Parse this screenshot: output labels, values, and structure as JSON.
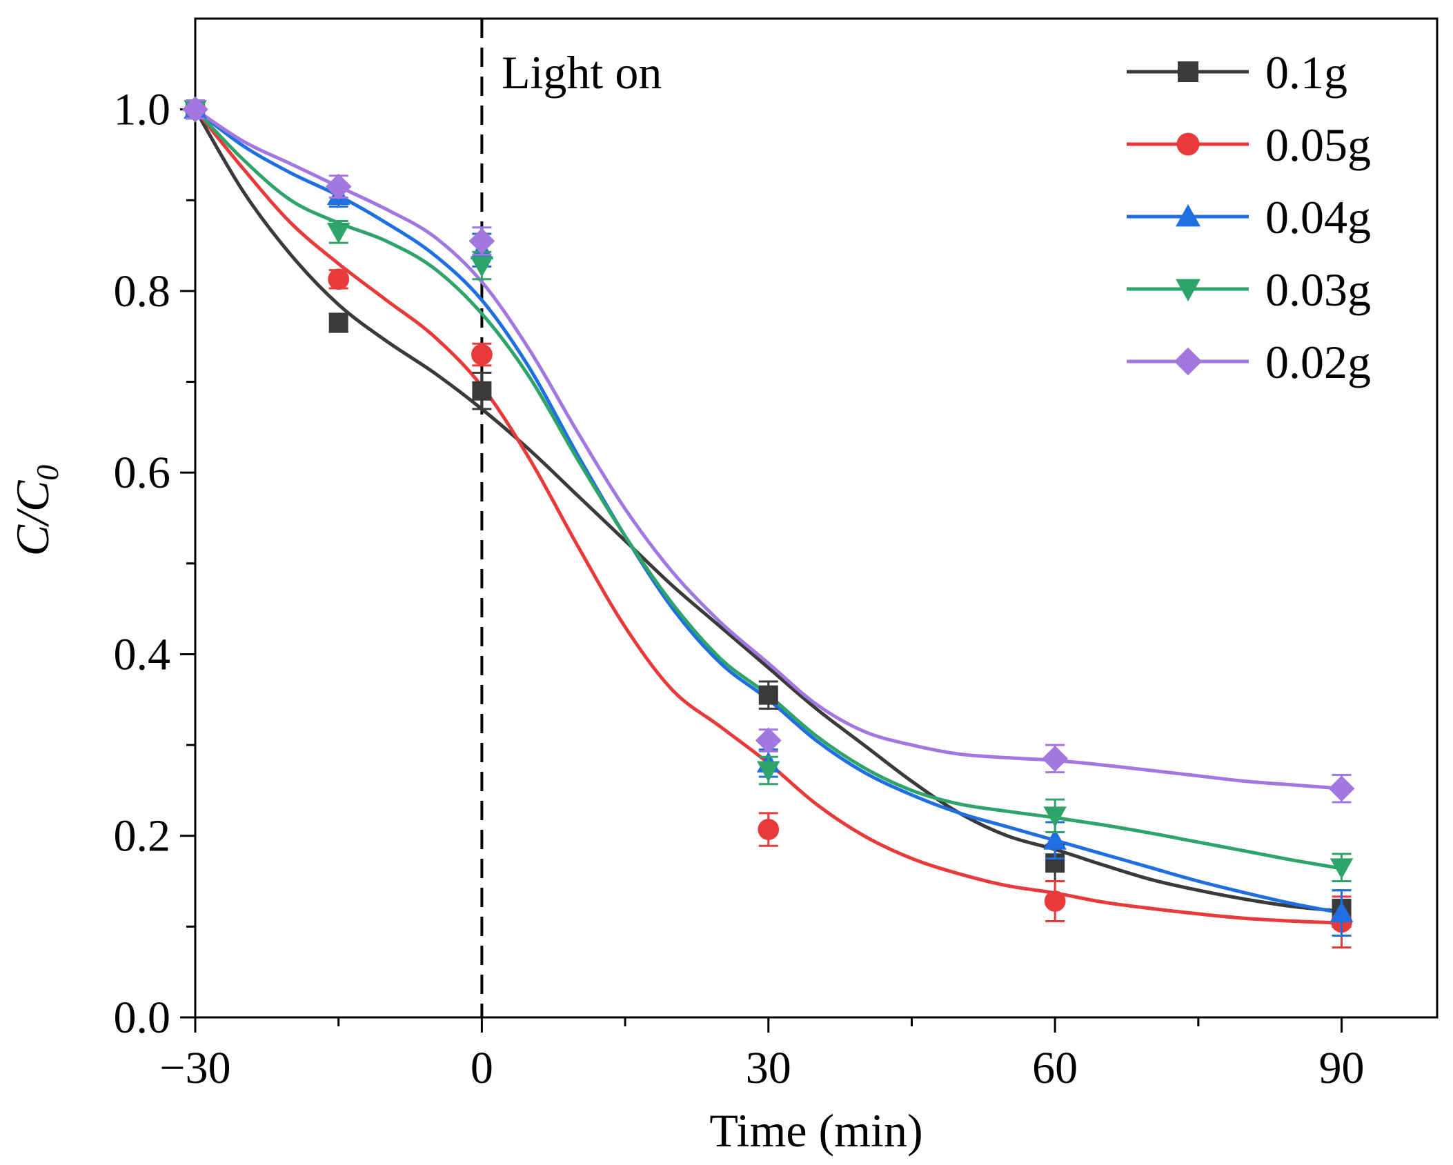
{
  "chart_data": {
    "type": "line",
    "title": "",
    "xlabel": "Time (min)",
    "ylabel_main": "C/C",
    "ylabel_sub": "0",
    "xlim": [
      -30,
      100
    ],
    "ylim": [
      0.0,
      1.1
    ],
    "x_ticks": [
      -30,
      0,
      30,
      60,
      90
    ],
    "x_tick_labels": [
      "−30",
      "0",
      "30",
      "60",
      "90"
    ],
    "x_minor_ticks": [
      -15,
      15,
      45,
      75
    ],
    "y_ticks": [
      0.0,
      0.2,
      0.4,
      0.6,
      0.8,
      1.0
    ],
    "y_tick_labels": [
      "0.0",
      "0.2",
      "0.4",
      "0.6",
      "0.8",
      "1.0"
    ],
    "y_minor_ticks": [
      0.1,
      0.3,
      0.5,
      0.7,
      0.9
    ],
    "annotation": {
      "text": "Light on",
      "x": 0
    },
    "legend_position": "top-right",
    "x": [
      -30,
      -15,
      0,
      30,
      60,
      90
    ],
    "series": [
      {
        "name": "0.1g",
        "color": "#3a3a3a",
        "marker": "square",
        "values": [
          1.0,
          0.765,
          0.69,
          0.355,
          0.17,
          0.12
        ],
        "errors": [
          0.01,
          0.01,
          0.02,
          0.015,
          0.02,
          0.02
        ],
        "fit_x": [
          -30,
          -25,
          -20,
          -15,
          -10,
          -5,
          0,
          5,
          10,
          15,
          20,
          25,
          30,
          35,
          40,
          45,
          50,
          55,
          60,
          65,
          70,
          75,
          80,
          85,
          90
        ],
        "fit_y": [
          1.0,
          0.91,
          0.84,
          0.785,
          0.745,
          0.71,
          0.67,
          0.625,
          0.575,
          0.525,
          0.475,
          0.43,
          0.385,
          0.34,
          0.3,
          0.26,
          0.225,
          0.2,
          0.185,
          0.168,
          0.152,
          0.14,
          0.13,
          0.122,
          0.117
        ]
      },
      {
        "name": "0.05g",
        "color": "#e83a3a",
        "marker": "circle",
        "values": [
          1.0,
          0.813,
          0.73,
          0.207,
          0.128,
          0.105
        ],
        "errors": [
          0.01,
          0.01,
          0.012,
          0.018,
          0.022,
          0.028
        ],
        "fit_x": [
          -30,
          -25,
          -20,
          -15,
          -10,
          -5,
          0,
          5,
          10,
          15,
          20,
          25,
          30,
          35,
          40,
          45,
          50,
          55,
          60,
          65,
          70,
          75,
          80,
          85,
          90
        ],
        "fit_y": [
          1.0,
          0.935,
          0.875,
          0.83,
          0.79,
          0.75,
          0.695,
          0.615,
          0.52,
          0.43,
          0.36,
          0.32,
          0.28,
          0.235,
          0.2,
          0.175,
          0.158,
          0.145,
          0.137,
          0.127,
          0.12,
          0.114,
          0.109,
          0.106,
          0.104
        ]
      },
      {
        "name": "0.04g",
        "color": "#1f6fe0",
        "marker": "triangle-up",
        "values": [
          1.0,
          0.905,
          0.845,
          0.28,
          0.195,
          0.115
        ],
        "errors": [
          0.01,
          0.012,
          0.018,
          0.015,
          0.02,
          0.025
        ],
        "fit_x": [
          -30,
          -25,
          -20,
          -15,
          -10,
          -5,
          0,
          5,
          10,
          15,
          20,
          25,
          30,
          35,
          40,
          45,
          50,
          55,
          60,
          65,
          70,
          75,
          80,
          85,
          90
        ],
        "fit_y": [
          1.0,
          0.96,
          0.93,
          0.905,
          0.875,
          0.84,
          0.79,
          0.715,
          0.62,
          0.53,
          0.45,
          0.39,
          0.35,
          0.305,
          0.27,
          0.245,
          0.225,
          0.21,
          0.195,
          0.18,
          0.165,
          0.15,
          0.137,
          0.125,
          0.115
        ]
      },
      {
        "name": "0.03g",
        "color": "#2ea36a",
        "marker": "triangle-down",
        "values": [
          1.0,
          0.865,
          0.828,
          0.272,
          0.222,
          0.165
        ],
        "errors": [
          0.01,
          0.012,
          0.015,
          0.015,
          0.018,
          0.015
        ],
        "fit_x": [
          -30,
          -25,
          -20,
          -15,
          -10,
          -5,
          0,
          5,
          10,
          15,
          20,
          25,
          30,
          35,
          40,
          45,
          50,
          55,
          60,
          65,
          70,
          75,
          80,
          85,
          90
        ],
        "fit_y": [
          1.0,
          0.945,
          0.9,
          0.875,
          0.855,
          0.825,
          0.775,
          0.705,
          0.615,
          0.53,
          0.455,
          0.395,
          0.355,
          0.31,
          0.275,
          0.25,
          0.235,
          0.227,
          0.22,
          0.212,
          0.203,
          0.193,
          0.183,
          0.173,
          0.164
        ]
      },
      {
        "name": "0.02g",
        "color": "#a377e0",
        "marker": "diamond",
        "values": [
          1.0,
          0.915,
          0.855,
          0.305,
          0.285,
          0.252
        ],
        "errors": [
          0.01,
          0.012,
          0.015,
          0.012,
          0.015,
          0.015
        ],
        "fit_x": [
          -30,
          -25,
          -20,
          -15,
          -10,
          -5,
          0,
          5,
          10,
          15,
          20,
          25,
          30,
          35,
          40,
          45,
          50,
          55,
          60,
          65,
          70,
          75,
          80,
          85,
          90
        ],
        "fit_y": [
          1.0,
          0.965,
          0.94,
          0.915,
          0.89,
          0.86,
          0.81,
          0.735,
          0.645,
          0.56,
          0.49,
          0.435,
          0.39,
          0.345,
          0.315,
          0.3,
          0.29,
          0.286,
          0.283,
          0.278,
          0.272,
          0.266,
          0.26,
          0.256,
          0.252
        ]
      }
    ]
  }
}
